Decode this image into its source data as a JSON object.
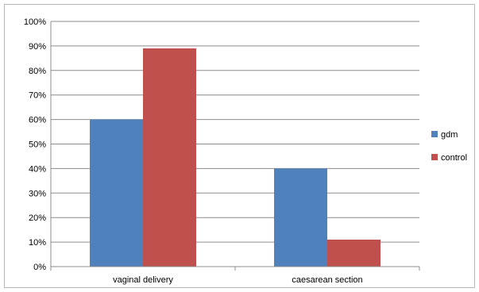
{
  "chart_data": {
    "type": "bar",
    "title": "",
    "xlabel": "",
    "ylabel": "",
    "categories": [
      "vaginal delivery",
      "caesarean section"
    ],
    "series": [
      {
        "name": "gdm",
        "color": "#4f81bd",
        "values": [
          60,
          40
        ]
      },
      {
        "name": "control",
        "color": "#c0504d",
        "values": [
          89,
          11
        ]
      }
    ],
    "ylim": [
      0,
      100
    ],
    "yticks": [
      "0%",
      "10%",
      "20%",
      "30%",
      "40%",
      "50%",
      "60%",
      "70%",
      "80%",
      "90%",
      "100%"
    ],
    "grid": true,
    "legend_position": "right"
  }
}
